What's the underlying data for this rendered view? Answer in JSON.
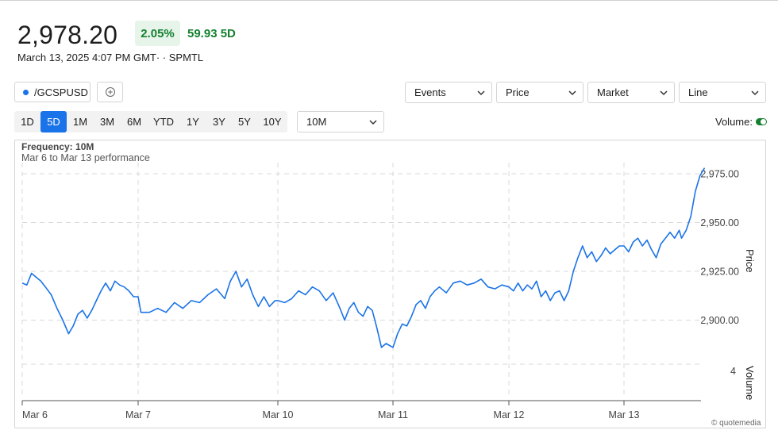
{
  "quote": {
    "price": "2,978.20",
    "pct_change": "2.05%",
    "change": "59.93 5D",
    "timestamp": "March 13, 2025 4:07 PM GMT· · SPMTL"
  },
  "toolbar": {
    "symbol": "/GCSPUSD",
    "add_icon": "plus-circle-icon",
    "events": "Events",
    "price_type": "Price",
    "market": "Market",
    "chart_style": "Line"
  },
  "ranges": [
    "1D",
    "5D",
    "1M",
    "3M",
    "6M",
    "YTD",
    "1Y",
    "3Y",
    "5Y",
    "10Y"
  ],
  "active_range": "5D",
  "frequency_select": "10M",
  "volume_toggle": {
    "label": "Volume:",
    "on": true
  },
  "chart_header": {
    "frequency": "Frequency: 10M",
    "performance": "Mar 6 to Mar 13 performance"
  },
  "credit": "© quotemedia",
  "colors": {
    "line": "#1a73e8",
    "up": "#14802f",
    "badge_bg": "#e7f4ea",
    "active": "#1a73e8"
  },
  "chart_data": {
    "type": "line",
    "x_categories": [
      "Mar 6",
      "Mar 7",
      "Mar 10",
      "Mar 11",
      "Mar 12",
      "Mar 13"
    ],
    "y_axis_label": "Price",
    "y_ticks": [
      "2,975.00",
      "2,950.00",
      "2,925.00",
      "2,900.00"
    ],
    "y_tick_values": [
      2975,
      2950,
      2925,
      2900
    ],
    "ylim": [
      2889,
      2978
    ],
    "volume_label": "Volume",
    "volume_tick": "4",
    "series": [
      {
        "values": [
          [
            0.0,
            2919
          ],
          [
            0.04,
            2918
          ],
          [
            0.08,
            2924
          ],
          [
            0.12,
            2922
          ],
          [
            0.16,
            2920
          ],
          [
            0.2,
            2917
          ],
          [
            0.25,
            2913
          ],
          [
            0.3,
            2906
          ],
          [
            0.35,
            2900
          ],
          [
            0.4,
            2893
          ],
          [
            0.44,
            2897
          ],
          [
            0.48,
            2903
          ],
          [
            0.52,
            2905
          ],
          [
            0.56,
            2901
          ],
          [
            0.6,
            2905
          ],
          [
            0.64,
            2910
          ],
          [
            0.68,
            2915
          ],
          [
            0.72,
            2919
          ],
          [
            0.76,
            2915
          ],
          [
            0.8,
            2920
          ],
          [
            0.84,
            2918
          ],
          [
            0.88,
            2917
          ],
          [
            0.92,
            2915
          ],
          [
            0.96,
            2912
          ],
          [
            1.0,
            2912
          ],
          [
            1.02,
            2904
          ],
          [
            1.08,
            2904
          ],
          [
            1.14,
            2906
          ],
          [
            1.2,
            2904
          ],
          [
            1.26,
            2909
          ],
          [
            1.32,
            2906
          ],
          [
            1.38,
            2910
          ],
          [
            1.44,
            2909
          ],
          [
            1.5,
            2913
          ],
          [
            1.56,
            2916
          ],
          [
            1.62,
            2911
          ],
          [
            1.66,
            2920
          ],
          [
            1.7,
            2925
          ],
          [
            1.74,
            2917
          ],
          [
            1.78,
            2921
          ],
          [
            1.82,
            2913
          ],
          [
            1.86,
            2907
          ],
          [
            1.9,
            2912
          ],
          [
            1.94,
            2907
          ],
          [
            1.98,
            2910
          ],
          [
            2.0,
            2910
          ],
          [
            2.06,
            2909
          ],
          [
            2.12,
            2911
          ],
          [
            2.18,
            2915
          ],
          [
            2.24,
            2913
          ],
          [
            2.3,
            2917
          ],
          [
            2.36,
            2915
          ],
          [
            2.42,
            2910
          ],
          [
            2.48,
            2914
          ],
          [
            2.54,
            2906
          ],
          [
            2.58,
            2900
          ],
          [
            2.62,
            2906
          ],
          [
            2.66,
            2909
          ],
          [
            2.7,
            2904
          ],
          [
            2.74,
            2902
          ],
          [
            2.78,
            2907
          ],
          [
            2.82,
            2905
          ],
          [
            2.86,
            2896
          ],
          [
            2.9,
            2886
          ],
          [
            2.94,
            2888
          ],
          [
            3.0,
            2886
          ],
          [
            3.04,
            2893
          ],
          [
            3.08,
            2898
          ],
          [
            3.12,
            2897
          ],
          [
            3.16,
            2902
          ],
          [
            3.2,
            2908
          ],
          [
            3.24,
            2910
          ],
          [
            3.28,
            2906
          ],
          [
            3.32,
            2912
          ],
          [
            3.36,
            2915
          ],
          [
            3.4,
            2917
          ],
          [
            3.46,
            2914
          ],
          [
            3.52,
            2919
          ],
          [
            3.58,
            2920
          ],
          [
            3.64,
            2918
          ],
          [
            3.7,
            2919
          ],
          [
            3.76,
            2921
          ],
          [
            3.82,
            2917
          ],
          [
            3.88,
            2916
          ],
          [
            3.94,
            2918
          ],
          [
            4.0,
            2917
          ],
          [
            4.04,
            2915
          ],
          [
            4.08,
            2919
          ],
          [
            4.12,
            2915
          ],
          [
            4.16,
            2918
          ],
          [
            4.2,
            2916
          ],
          [
            4.24,
            2920
          ],
          [
            4.28,
            2912
          ],
          [
            4.32,
            2915
          ],
          [
            4.36,
            2910
          ],
          [
            4.4,
            2914
          ],
          [
            4.44,
            2915
          ],
          [
            4.48,
            2910
          ],
          [
            4.52,
            2915
          ],
          [
            4.56,
            2925
          ],
          [
            4.6,
            2932
          ],
          [
            4.64,
            2938
          ],
          [
            4.68,
            2932
          ],
          [
            4.72,
            2935
          ],
          [
            4.76,
            2930
          ],
          [
            4.8,
            2933
          ],
          [
            4.84,
            2937
          ],
          [
            4.88,
            2934
          ],
          [
            4.92,
            2936
          ],
          [
            4.96,
            2938
          ],
          [
            5.0,
            2938
          ],
          [
            5.04,
            2935
          ],
          [
            5.08,
            2940
          ],
          [
            5.12,
            2942
          ],
          [
            5.16,
            2938
          ],
          [
            5.2,
            2941
          ],
          [
            5.24,
            2936
          ],
          [
            5.28,
            2932
          ],
          [
            5.32,
            2939
          ],
          [
            5.36,
            2942
          ],
          [
            5.4,
            2945
          ],
          [
            5.44,
            2942
          ],
          [
            5.48,
            2946
          ],
          [
            5.5,
            2942
          ],
          [
            5.54,
            2946
          ],
          [
            5.58,
            2953
          ],
          [
            5.62,
            2966
          ],
          [
            5.66,
            2974
          ],
          [
            5.7,
            2978
          ]
        ]
      }
    ]
  }
}
